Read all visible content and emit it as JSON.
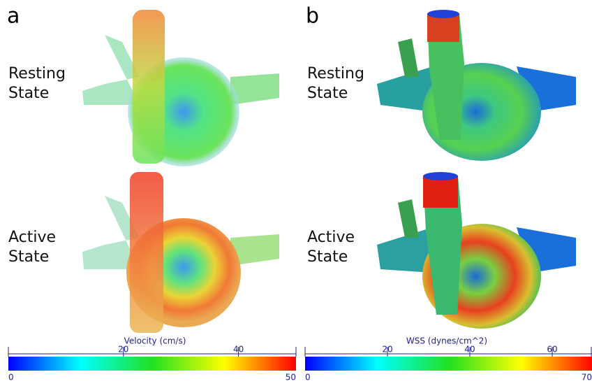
{
  "panels": [
    {
      "label": "a"
    },
    {
      "label": "b"
    }
  ],
  "rows": [
    {
      "line1": "Resting",
      "line2": "State"
    },
    {
      "line1": "Active",
      "line2": "State"
    }
  ],
  "colorbars": [
    {
      "title": "Velocity (cm/s)",
      "lim": [
        0,
        50
      ],
      "ticks": [
        20,
        40
      ]
    },
    {
      "title": "WSS (dynes/cm^2)",
      "lim": [
        0,
        70
      ],
      "ticks": [
        20,
        40,
        60
      ]
    }
  ]
}
